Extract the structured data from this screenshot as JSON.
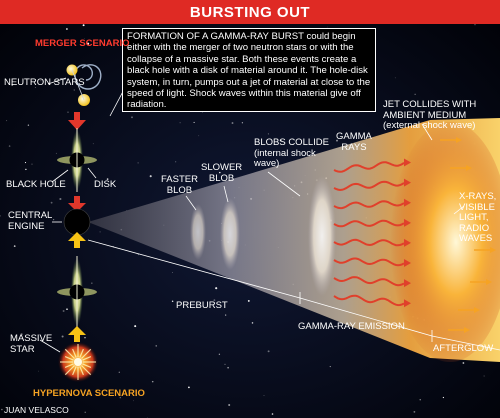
{
  "header": {
    "title": "BURSTING OUT"
  },
  "caption": {
    "text": "FORMATION OF A GAMMA-RAY BURST could begin either with the merger of two neutron stars or with the collapse of a massive star. Both these events create a black hole with a disk of material around it. The hole-disk system, in turn, pumps out a jet of material at close to the speed of light. Shock waves within this material give off radiation."
  },
  "labels": {
    "merger_scenario": "MERGER SCENARIO",
    "neutron_stars": "NEUTRON STARS",
    "black_hole": "BLACK HOLE",
    "disk": "DISK",
    "central_engine_line1": "CENTRAL",
    "central_engine_line2": "ENGINE",
    "massive_star_line1": "MASSIVE",
    "massive_star_line2": "STAR",
    "hypernova_scenario": "HYPERNOVA SCENARIO",
    "credit": "JUAN VELASCO",
    "faster_blob_line1": "FASTER",
    "faster_blob_line2": "BLOB",
    "slower_blob_line1": "SLOWER",
    "slower_blob_line2": "BLOB",
    "blobs_collide_line1": "BLOBS COLLIDE",
    "blobs_collide_line2": "(internal shock",
    "blobs_collide_line3": "wave)",
    "gamma_rays_line1": "GAMMA",
    "gamma_rays_line2": "RAYS",
    "jet_collides_line1": "JET COLLIDES WITH",
    "jet_collides_line2": "AMBIENT MEDIUM",
    "jet_collides_line3": "(external shock wave)",
    "xrays_line1": "X-RAYS,",
    "xrays_line2": "VISIBLE",
    "xrays_line3": "LIGHT,",
    "xrays_line4": "RADIO",
    "xrays_line5": "WAVES",
    "preburst": "PREBURST",
    "gamma_ray_emission": "GAMMA-RAY EMISSION",
    "afterglow": "AFTERGLOW"
  },
  "colors": {
    "title_bar": "#df2a24",
    "merger_label": "#ff3b2e",
    "hypernova_label": "#f6a323",
    "arrow_red": "#e2372b",
    "arrow_yellow": "#f7c315",
    "jet_core": "#fff3c4",
    "jet_hot": "#f7a12a",
    "jet_cool": "#b9b7c2",
    "gamma_wave": "#e0402b"
  }
}
